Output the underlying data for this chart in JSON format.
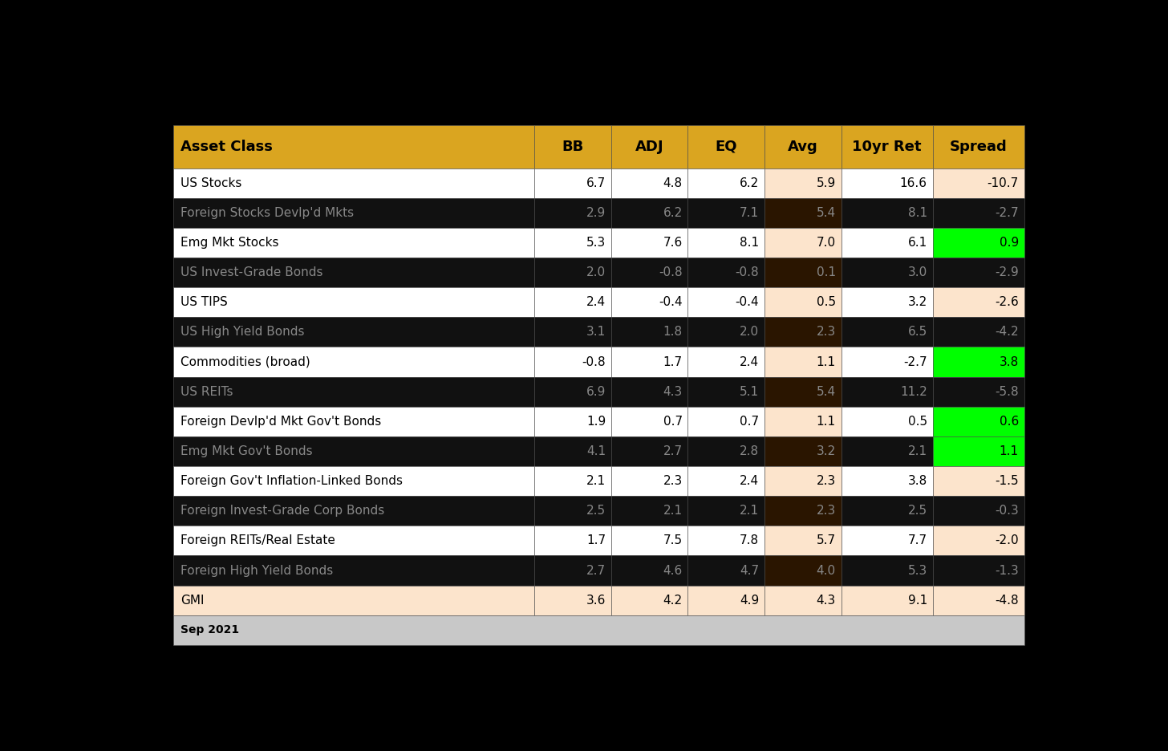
{
  "columns": [
    "Asset Class",
    "BB",
    "ADJ",
    "EQ",
    "Avg",
    "10yr Ret",
    "Spread"
  ],
  "rows": [
    {
      "name": "US Stocks",
      "bb": 6.7,
      "adj": 4.8,
      "eq": 6.2,
      "avg": 5.9,
      "ret": 16.6,
      "spread": -10.7,
      "dark": false,
      "last": false
    },
    {
      "name": "Foreign Stocks Devlp'd Mkts",
      "bb": 2.9,
      "adj": 6.2,
      "eq": 7.1,
      "avg": 5.4,
      "ret": 8.1,
      "spread": -2.7,
      "dark": true,
      "last": false
    },
    {
      "name": "Emg Mkt Stocks",
      "bb": 5.3,
      "adj": 7.6,
      "eq": 8.1,
      "avg": 7.0,
      "ret": 6.1,
      "spread": 0.9,
      "dark": false,
      "last": false
    },
    {
      "name": "US Invest-Grade Bonds",
      "bb": 2.0,
      "adj": -0.8,
      "eq": -0.8,
      "avg": 0.1,
      "ret": 3.0,
      "spread": -2.9,
      "dark": true,
      "last": false
    },
    {
      "name": "US TIPS",
      "bb": 2.4,
      "adj": -0.4,
      "eq": -0.4,
      "avg": 0.5,
      "ret": 3.2,
      "spread": -2.6,
      "dark": false,
      "last": false
    },
    {
      "name": "US High Yield Bonds",
      "bb": 3.1,
      "adj": 1.8,
      "eq": 2.0,
      "avg": 2.3,
      "ret": 6.5,
      "spread": -4.2,
      "dark": true,
      "last": false
    },
    {
      "name": "Commodities (broad)",
      "bb": -0.8,
      "adj": 1.7,
      "eq": 2.4,
      "avg": 1.1,
      "ret": -2.7,
      "spread": 3.8,
      "dark": false,
      "last": false
    },
    {
      "name": "US REITs",
      "bb": 6.9,
      "adj": 4.3,
      "eq": 5.1,
      "avg": 5.4,
      "ret": 11.2,
      "spread": -5.8,
      "dark": true,
      "last": false
    },
    {
      "name": "Foreign Devlp'd Mkt Gov't Bonds",
      "bb": 1.9,
      "adj": 0.7,
      "eq": 0.7,
      "avg": 1.1,
      "ret": 0.5,
      "spread": 0.6,
      "dark": false,
      "last": false
    },
    {
      "name": "Emg Mkt Gov't Bonds",
      "bb": 4.1,
      "adj": 2.7,
      "eq": 2.8,
      "avg": 3.2,
      "ret": 2.1,
      "spread": 1.1,
      "dark": true,
      "last": false
    },
    {
      "name": "Foreign Gov't Inflation-Linked Bonds",
      "bb": 2.1,
      "adj": 2.3,
      "eq": 2.4,
      "avg": 2.3,
      "ret": 3.8,
      "spread": -1.5,
      "dark": false,
      "last": false
    },
    {
      "name": "Foreign Invest-Grade Corp Bonds",
      "bb": 2.5,
      "adj": 2.1,
      "eq": 2.1,
      "avg": 2.3,
      "ret": 2.5,
      "spread": -0.3,
      "dark": true,
      "last": false
    },
    {
      "name": "Foreign REITs/Real Estate",
      "bb": 1.7,
      "adj": 7.5,
      "eq": 7.8,
      "avg": 5.7,
      "ret": 7.7,
      "spread": -2.0,
      "dark": false,
      "last": false
    },
    {
      "name": "Foreign High Yield Bonds",
      "bb": 2.7,
      "adj": 4.6,
      "eq": 4.7,
      "avg": 4.0,
      "ret": 5.3,
      "spread": -1.3,
      "dark": true,
      "last": false
    },
    {
      "name": "GMI",
      "bb": 3.6,
      "adj": 4.2,
      "eq": 4.9,
      "avg": 4.3,
      "ret": 9.1,
      "spread": -4.8,
      "dark": false,
      "last": true
    }
  ],
  "header_bg": "#DAA520",
  "header_text": "#000000",
  "dark_row_bg": "#111111",
  "dark_row_text": "#888888",
  "light_row_bg": "#ffffff",
  "light_row_text": "#000000",
  "avg_col_bg_light": "#fce4cc",
  "avg_col_bg_dark": "#2a1500",
  "last_row_bg": "#fce4cc",
  "green_cell_bg": "#00ff00",
  "green_cell_text": "#000000",
  "spread_neg_light": "#fce4cc",
  "spread_neg_dark": "#111111",
  "footer_text": "Sep 2021",
  "outer_bg": "#000000",
  "footer_bg": "#c8c8c8",
  "border_color": "#555555"
}
